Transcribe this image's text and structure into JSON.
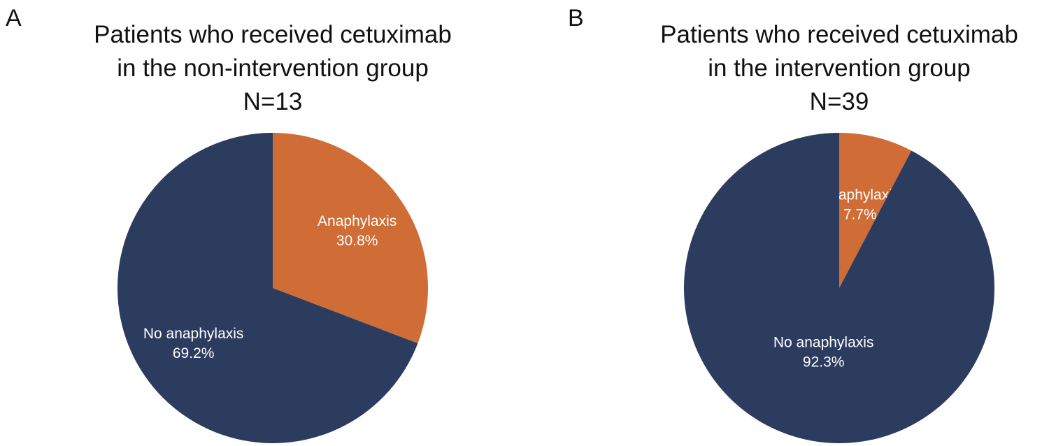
{
  "chart_data": [
    {
      "type": "pie",
      "panel_label": "A",
      "title_lines": [
        "Patients who received cetuximab",
        "in the non-intervention group",
        "N=13"
      ],
      "slices": [
        {
          "name": "Anaphylaxis",
          "value": 30.8,
          "label": "30.8%",
          "color": "#D06C35"
        },
        {
          "name": "No anaphylaxis",
          "value": 69.2,
          "label": "69.2%",
          "color": "#2B3C5F"
        }
      ],
      "start_angle": "12 o'clock",
      "direction": "clockwise"
    },
    {
      "type": "pie",
      "panel_label": "B",
      "title_lines": [
        "Patients who received cetuximab",
        "in the intervention group",
        "N=39"
      ],
      "slices": [
        {
          "name": "Anaphylaxis",
          "value": 7.7,
          "label": "7.7%",
          "color": "#D06C35"
        },
        {
          "name": "No anaphylaxis",
          "value": 92.3,
          "label": "92.3%",
          "color": "#2B3C5F"
        }
      ],
      "start_angle": "12 o'clock",
      "direction": "clockwise"
    }
  ]
}
